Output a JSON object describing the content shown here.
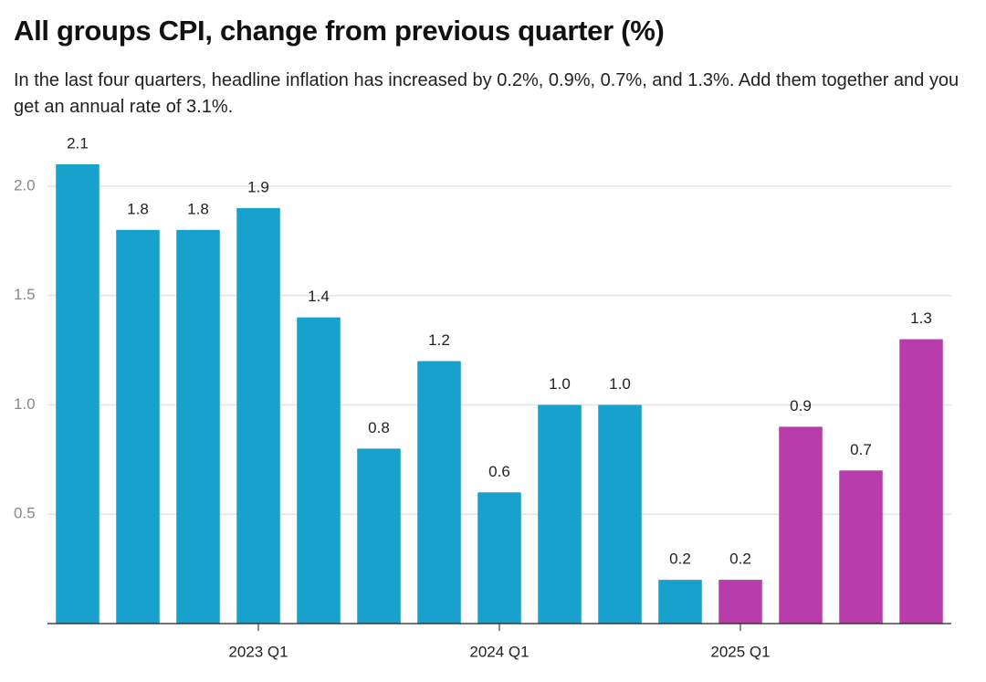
{
  "chart_data": {
    "type": "bar",
    "title": "All groups CPI, change from previous quarter (%)",
    "subtitle": "In the last four quarters, headline inflation has increased by 0.2%, 0.9%, 0.7%, and 1.3%. Add them together and you get an annual rate of 3.1%.",
    "categories": [
      null,
      null,
      null,
      "2023 Q1",
      null,
      null,
      null,
      "2024 Q1",
      null,
      null,
      null,
      "2025 Q1",
      null,
      null,
      null
    ],
    "values": [
      2.1,
      1.8,
      1.8,
      1.9,
      1.4,
      0.8,
      1.2,
      0.6,
      1.0,
      1.0,
      0.2,
      0.2,
      0.9,
      0.7,
      1.3
    ],
    "value_labels": [
      "2.1",
      "1.8",
      "1.8",
      "1.9",
      "1.4",
      "0.8",
      "1.2",
      "0.6",
      "1.0",
      "1.0",
      "0.2",
      "0.2",
      "0.9",
      "0.7",
      "1.3"
    ],
    "colors": [
      "#18a1cd",
      "#18a1cd",
      "#18a1cd",
      "#18a1cd",
      "#18a1cd",
      "#18a1cd",
      "#18a1cd",
      "#18a1cd",
      "#18a1cd",
      "#18a1cd",
      "#18a1cd",
      "#b83dab",
      "#b83dab",
      "#b83dab",
      "#b83dab"
    ],
    "ylim": [
      0,
      2.2
    ],
    "yticks": [
      0.5,
      {
        "value": 1,
        "label": "1.0"
      },
      1.5,
      {
        "value": 2,
        "label": "2.0"
      }
    ],
    "grid": true
  }
}
